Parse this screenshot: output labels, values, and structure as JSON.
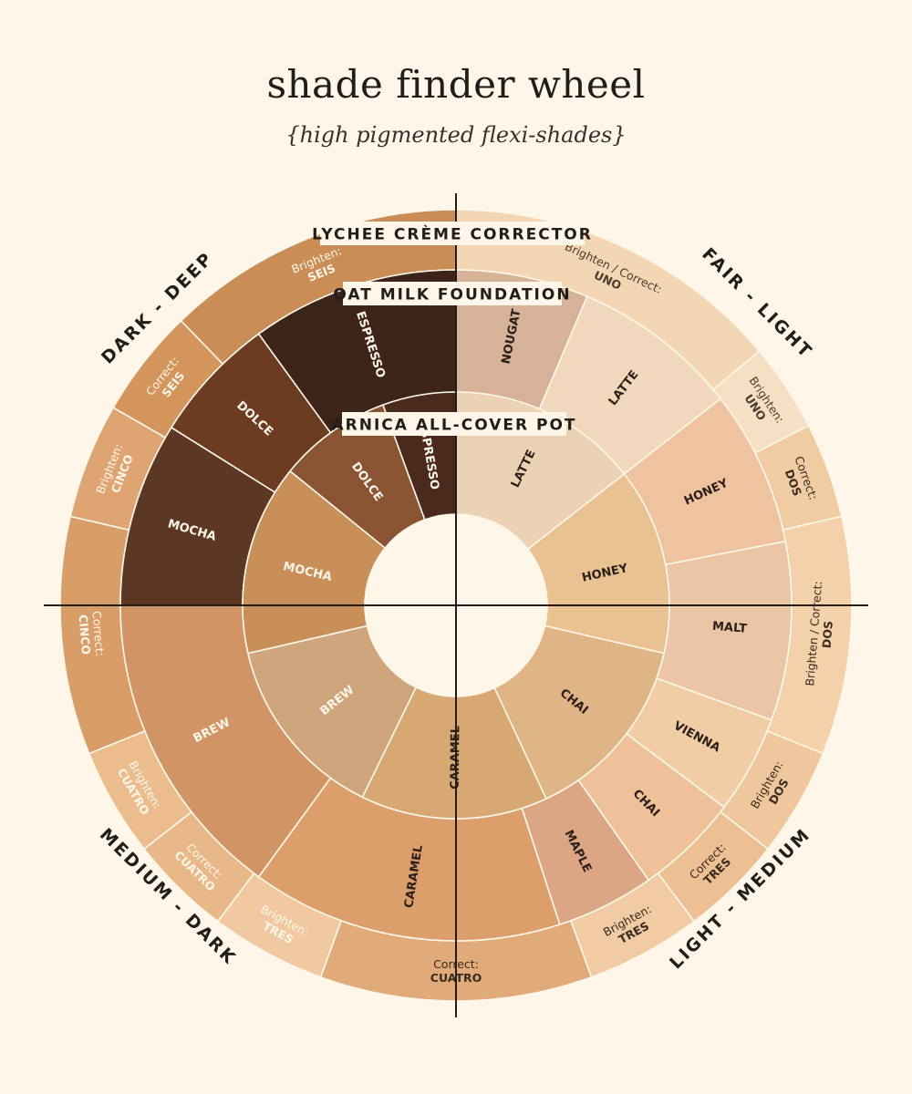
{
  "title": "shade finder wheel",
  "subtitle": "{high pigmented flexi-shades}",
  "ring_titles": {
    "outer": "LYCHEE CRÈME CORRECTOR",
    "middle": "OAT MILK FOUNDATION",
    "inner": "ARNICA ALL-COVER POT"
  },
  "quadrants": {
    "top_right": "FAIR - LIGHT",
    "top_left": "DARK - DEEP",
    "bottom_right": "LIGHT - MEDIUM",
    "bottom_left": "MEDIUM - DARK"
  },
  "outer_ring": [
    {
      "lines": [
        "Brighten / Correct:",
        "UNO"
      ],
      "start": 0,
      "end": 50,
      "color": "#f3d6b3",
      "text": "#4a3a30"
    },
    {
      "lines": [
        "Brighten:",
        "UNO"
      ],
      "start": 50,
      "end": 63,
      "color": "#f6e0c4",
      "text": "#4a3a30"
    },
    {
      "lines": [
        "Correct:",
        "DOS"
      ],
      "start": 63,
      "end": 77,
      "color": "#f0cca2",
      "text": "#3a2a20"
    },
    {
      "lines": [
        "Brighten / Correct:",
        "DOS"
      ],
      "start": 77,
      "end": 112,
      "color": "#f2d1ab",
      "text": "#3a2a20"
    },
    {
      "lines": [
        "Brighten:",
        "DOS"
      ],
      "start": 112,
      "end": 128,
      "color": "#efc79c",
      "text": "#3a2a20"
    },
    {
      "lines": [
        "Correct:",
        "TRES"
      ],
      "start": 128,
      "end": 143,
      "color": "#ecc092",
      "text": "#3a2a20"
    },
    {
      "lines": [
        "Brighten:",
        "TRES"
      ],
      "start": 143,
      "end": 160,
      "color": "#f0cba3",
      "text": "#3a2a20"
    },
    {
      "lines": [
        "Correct:",
        "CUATRO"
      ],
      "start": 160,
      "end": 200,
      "color": "#e1ab79",
      "text": "#3a2a20"
    },
    {
      "lines": [
        "Brighten:",
        "TRES"
      ],
      "start": 200,
      "end": 217,
      "color": "#f1c9a1",
      "text": "#fdf6e9"
    },
    {
      "lines": [
        "Correct:",
        "CUATRO"
      ],
      "start": 217,
      "end": 232,
      "color": "#e9b889",
      "text": "#fdf6e9"
    },
    {
      "lines": [
        "Brighten:",
        "CUATRO"
      ],
      "start": 232,
      "end": 248,
      "color": "#ebbd8d",
      "text": "#fdf6e9"
    },
    {
      "lines": [
        "Correct:",
        "CINCO"
      ],
      "start": 248,
      "end": 283,
      "color": "#d99d68",
      "text": "#fdf6e9"
    },
    {
      "lines": [
        "Brighten:",
        "CINCO"
      ],
      "start": 283,
      "end": 300,
      "color": "#dea572",
      "text": "#fdf6e9"
    },
    {
      "lines": [
        "Correct:",
        "SEIS"
      ],
      "start": 300,
      "end": 316,
      "color": "#d4955d",
      "text": "#fdf6e9"
    },
    {
      "lines": [
        "Brighten:",
        "SEIS"
      ],
      "start": 316,
      "end": 360,
      "color": "#c98d55",
      "text": "#fdf6e9"
    }
  ],
  "middle_ring": [
    {
      "label": "NOUGAT",
      "start": 0,
      "end": 23,
      "color": "#d6b298",
      "text": "#2a1f19"
    },
    {
      "label": "LATTE",
      "start": 23,
      "end": 52,
      "color": "#f1d8bd",
      "text": "#2a1f19"
    },
    {
      "label": "HONEY",
      "start": 52,
      "end": 79,
      "color": "#f0c3a0",
      "text": "#2a1f19"
    },
    {
      "label": "MALT",
      "start": 79,
      "end": 110,
      "color": "#eac6a6",
      "text": "#2a1f19"
    },
    {
      "label": "VIENNA",
      "start": 110,
      "end": 127,
      "color": "#f1cda6",
      "text": "#2a1f19"
    },
    {
      "label": "CHAI",
      "start": 127,
      "end": 145,
      "color": "#eec199",
      "text": "#2a1f19"
    },
    {
      "label": "MAPLE",
      "start": 145,
      "end": 162,
      "color": "#dca684",
      "text": "#2a1f19"
    },
    {
      "label": "CARAMEL",
      "start": 162,
      "end": 216,
      "color": "#dc9f6b",
      "text": "#2a1f19"
    },
    {
      "label": "BREW",
      "start": 216,
      "end": 270,
      "color": "#d19565",
      "text": "#fdf6e9"
    },
    {
      "label": "MOCHA",
      "start": 270,
      "end": 302,
      "color": "#5c3824",
      "text": "#fdf6e9"
    },
    {
      "label": "DOLCE",
      "start": 302,
      "end": 324,
      "color": "#6b3b22",
      "text": "#fdf6e9"
    },
    {
      "label": "ESPRESSO",
      "start": 324,
      "end": 360,
      "color": "#3d2419",
      "text": "#fdf6e9"
    }
  ],
  "inner_ring": [
    {
      "label": "LATTE",
      "start": 0,
      "end": 52,
      "color": "#ecd2b5",
      "text": "#2a1f19"
    },
    {
      "label": "HONEY",
      "start": 52,
      "end": 103,
      "color": "#e8c291",
      "text": "#2a1f19"
    },
    {
      "label": "CHAI",
      "start": 103,
      "end": 155,
      "color": "#e0b585",
      "text": "#2a1f19"
    },
    {
      "label": "CARAMEL",
      "start": 155,
      "end": 206,
      "color": "#d8a873",
      "text": "#2a1f19"
    },
    {
      "label": "BREW",
      "start": 206,
      "end": 257,
      "color": "#cfa57b",
      "text": "#fdf6e9"
    },
    {
      "label": "MOCHA",
      "start": 257,
      "end": 309,
      "color": "#c88f58",
      "text": "#fdf6e9"
    },
    {
      "label": "DOLCE",
      "start": 309,
      "end": 340,
      "color": "#8a5433",
      "text": "#fdf6e9"
    },
    {
      "label": "ESPRESSO",
      "start": 340,
      "end": 360,
      "color": "#4a2a1c",
      "text": "#fdf6e9"
    }
  ]
}
